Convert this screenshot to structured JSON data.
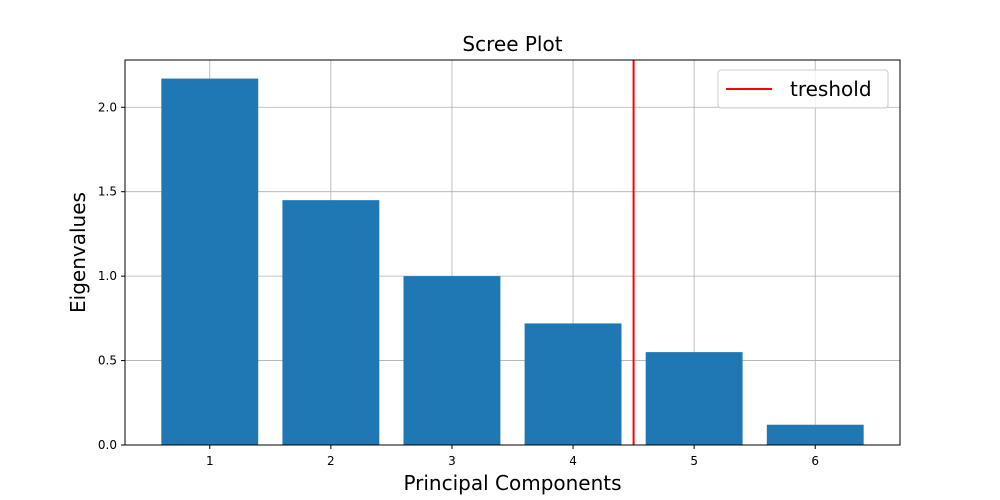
{
  "chart_data": {
    "type": "bar",
    "title": "Scree Plot",
    "xlabel": "Principal Components",
    "ylabel": "Eigenvalues",
    "categories": [
      "1",
      "2",
      "3",
      "4",
      "5",
      "6"
    ],
    "x": [
      1,
      2,
      3,
      4,
      5,
      6
    ],
    "values": [
      2.17,
      1.45,
      1.0,
      0.72,
      0.55,
      0.12
    ],
    "xlim": [
      0.3,
      6.7
    ],
    "ylim": [
      0,
      2.28
    ],
    "yticks": [
      0.0,
      0.5,
      1.0,
      1.5,
      2.0
    ],
    "ytick_labels": [
      "0.0",
      "0.5",
      "1.0",
      "1.5",
      "2.0"
    ],
    "bar_width": 0.8,
    "bar_color": "#1f77b4",
    "grid": true,
    "threshold": {
      "x": 4.5,
      "label": "treshold",
      "color": "#ff0000"
    },
    "legend": {
      "position": "top-right",
      "entries": [
        "treshold"
      ]
    }
  }
}
